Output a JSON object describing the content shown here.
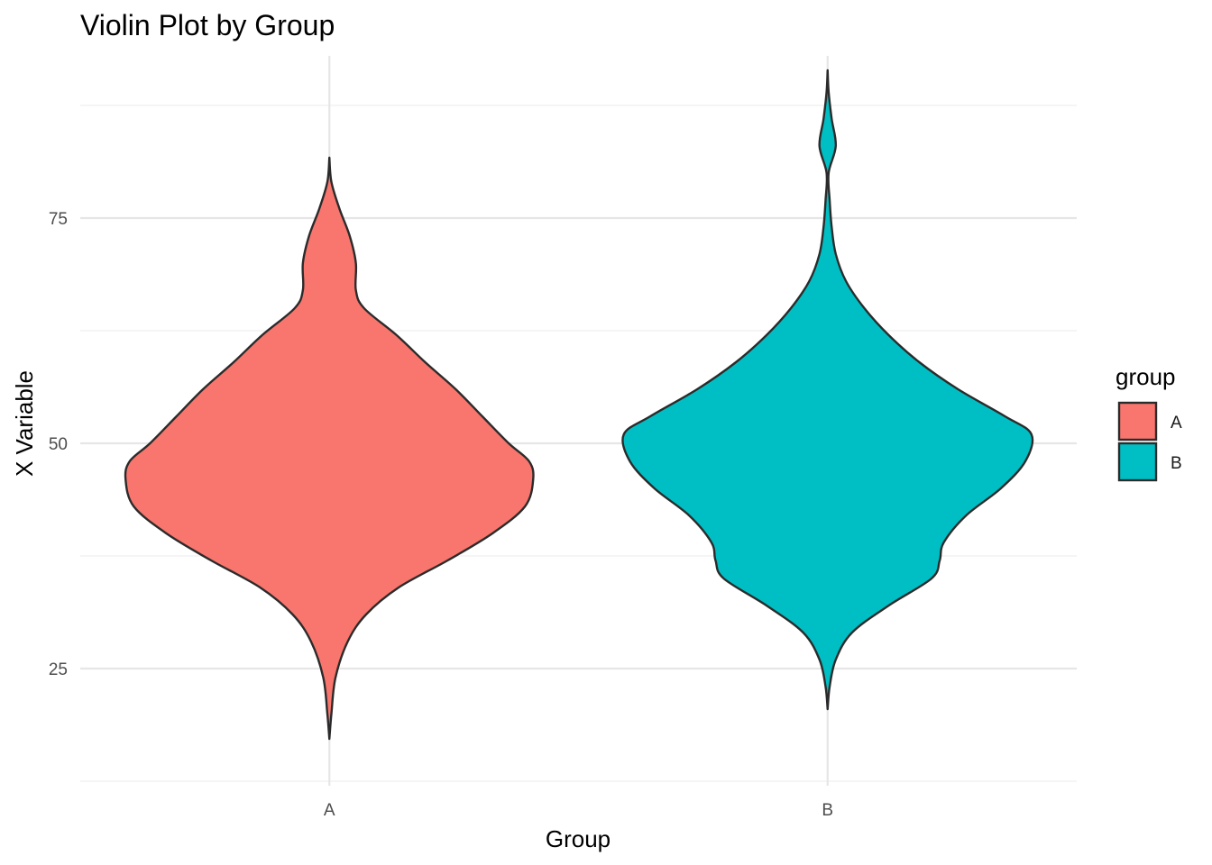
{
  "chart_data": {
    "type": "violin",
    "title": "Violin Plot by Group",
    "xlabel": "Group",
    "ylabel": "X Variable",
    "categories": [
      "A",
      "B"
    ],
    "ylim": [
      12,
      93
    ],
    "yticks": [
      25,
      50,
      75
    ],
    "grid": true,
    "legend": {
      "title": "group",
      "position": "right",
      "entries": [
        {
          "label": "A",
          "color": "#F8766D"
        },
        {
          "label": "B",
          "color": "#00BFC4"
        }
      ]
    },
    "series": [
      {
        "name": "A",
        "color": "#F8766D",
        "min": 17.2,
        "max": 81.7,
        "density_profile": [
          [
            17.2,
            0.0
          ],
          [
            20.0,
            0.01
          ],
          [
            24.0,
            0.03
          ],
          [
            28.0,
            0.09
          ],
          [
            31.0,
            0.18
          ],
          [
            34.0,
            0.34
          ],
          [
            37.0,
            0.58
          ],
          [
            40.0,
            0.8
          ],
          [
            43.0,
            0.96
          ],
          [
            46.0,
            1.0
          ],
          [
            48.0,
            0.98
          ],
          [
            50.0,
            0.88
          ],
          [
            53.0,
            0.75
          ],
          [
            56.0,
            0.62
          ],
          [
            59.0,
            0.47
          ],
          [
            62.0,
            0.33
          ],
          [
            65.0,
            0.17
          ],
          [
            67.0,
            0.13
          ],
          [
            70.0,
            0.13
          ],
          [
            73.0,
            0.1
          ],
          [
            76.0,
            0.05
          ],
          [
            79.0,
            0.01
          ],
          [
            81.7,
            0.0
          ]
        ]
      },
      {
        "name": "B",
        "color": "#00BFC4",
        "min": 20.5,
        "max": 91.4,
        "density_profile": [
          [
            20.5,
            0.0
          ],
          [
            23.0,
            0.01
          ],
          [
            26.0,
            0.04
          ],
          [
            29.0,
            0.12
          ],
          [
            32.0,
            0.3
          ],
          [
            35.0,
            0.51
          ],
          [
            37.0,
            0.55
          ],
          [
            39.0,
            0.57
          ],
          [
            42.0,
            0.68
          ],
          [
            45.0,
            0.85
          ],
          [
            48.0,
            0.97
          ],
          [
            51.0,
            1.0
          ],
          [
            53.0,
            0.87
          ],
          [
            56.0,
            0.64
          ],
          [
            59.0,
            0.45
          ],
          [
            62.0,
            0.3
          ],
          [
            65.0,
            0.18
          ],
          [
            68.0,
            0.09
          ],
          [
            71.0,
            0.04
          ],
          [
            74.0,
            0.02
          ],
          [
            77.0,
            0.01
          ],
          [
            80.0,
            0.005
          ],
          [
            83.0,
            0.04
          ],
          [
            86.0,
            0.02
          ],
          [
            89.0,
            0.005
          ],
          [
            91.4,
            0.0
          ]
        ]
      }
    ]
  }
}
